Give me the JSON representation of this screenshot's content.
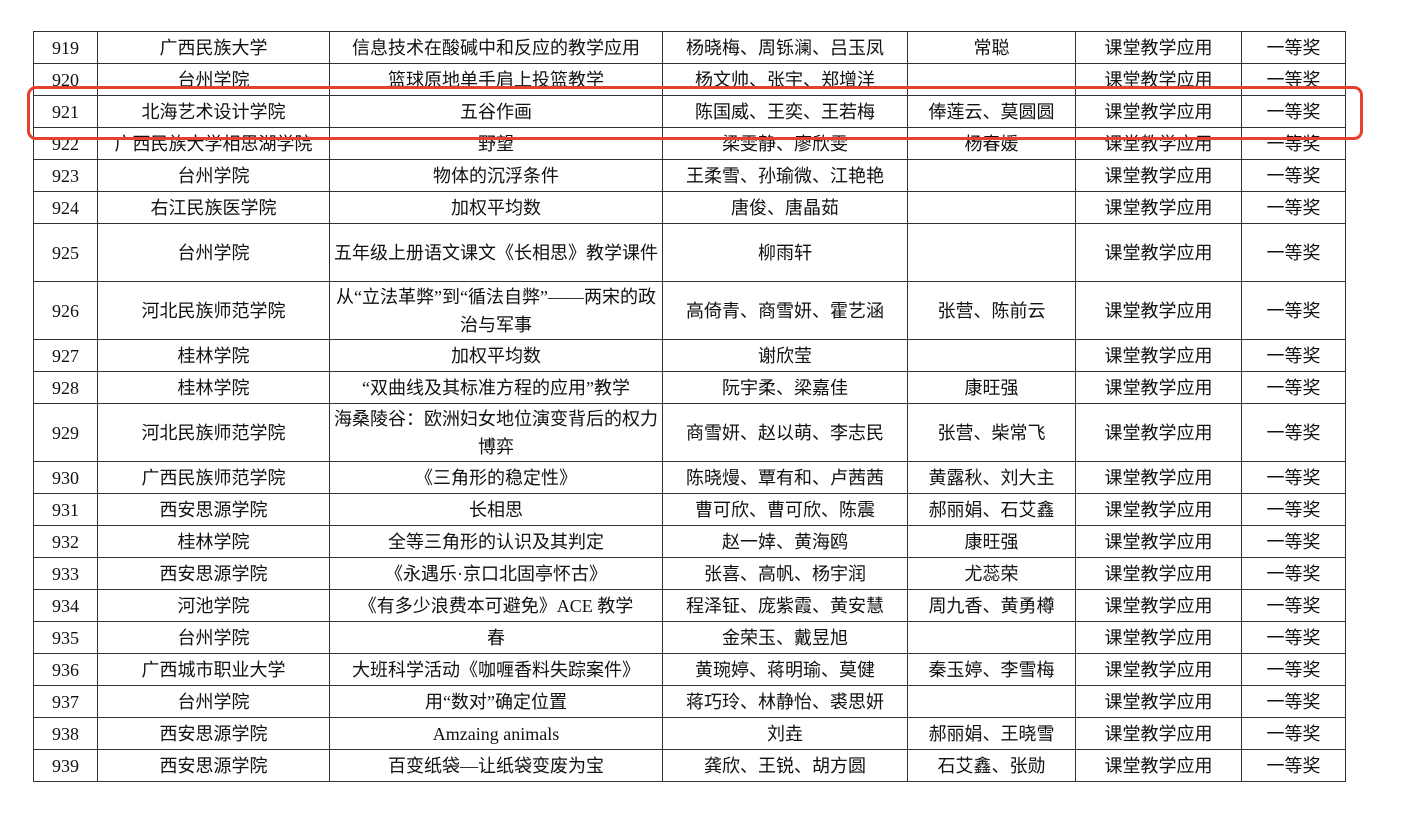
{
  "table": {
    "rows": [
      [
        "919",
        "广西民族大学",
        "信息技术在酸碱中和反应的教学应用",
        "杨晓梅、周铄澜、吕玉凤",
        "常聪",
        "课堂教学应用",
        "一等奖"
      ],
      [
        "920",
        "台州学院",
        "篮球原地单手肩上投篮教学",
        "杨文帅、张宇、郑增洋",
        "",
        "课堂教学应用",
        "一等奖"
      ],
      [
        "921",
        "北海艺术设计学院",
        "五谷作画",
        "陈国威、王奕、王若梅",
        "俸莲云、莫圆圆",
        "课堂教学应用",
        "一等奖"
      ],
      [
        "922",
        "广西民族大学相思湖学院",
        "野望",
        "梁雯静、廖欣雯",
        "杨春媛",
        "课堂教学应用",
        "一等奖"
      ],
      [
        "923",
        "台州学院",
        "物体的沉浮条件",
        "王柔雪、孙瑜微、江艳艳",
        "",
        "课堂教学应用",
        "一等奖"
      ],
      [
        "924",
        "右江民族医学院",
        "加权平均数",
        "唐俊、唐晶茹",
        "",
        "课堂教学应用",
        "一等奖"
      ],
      [
        "925",
        "台州学院",
        "五年级上册语文课文《长相思》教学课件",
        "柳雨轩",
        "",
        "课堂教学应用",
        "一等奖"
      ],
      [
        "926",
        "河北民族师范学院",
        "从“立法革弊”到“循法自弊”——两宋的政治与军事",
        "高倚青、商雪妍、霍艺涵",
        "张营、陈前云",
        "课堂教学应用",
        "一等奖"
      ],
      [
        "927",
        "桂林学院",
        "加权平均数",
        "谢欣莹",
        "",
        "课堂教学应用",
        "一等奖"
      ],
      [
        "928",
        "桂林学院",
        "“双曲线及其标准方程的应用”教学",
        "阮宇柔、梁嘉佳",
        "康旺强",
        "课堂教学应用",
        "一等奖"
      ],
      [
        "929",
        "河北民族师范学院",
        "海桑陵谷：欧洲妇女地位演变背后的权力博弈",
        "商雪妍、赵以萌、李志民",
        "张营、柴常飞",
        "课堂教学应用",
        "一等奖"
      ],
      [
        "930",
        "广西民族师范学院",
        "《三角形的稳定性》",
        "陈晓熳、覃有和、卢茜茜",
        "黄露秋、刘大主",
        "课堂教学应用",
        "一等奖"
      ],
      [
        "931",
        "西安思源学院",
        "长相思",
        "曹可欣、曹可欣、陈震",
        "郝丽娟、石艾鑫",
        "课堂教学应用",
        "一等奖"
      ],
      [
        "932",
        "桂林学院",
        "全等三角形的认识及其判定",
        "赵一婞、黄海鸥",
        "康旺强",
        "课堂教学应用",
        "一等奖"
      ],
      [
        "933",
        "西安思源学院",
        "《永遇乐·京口北固亭怀古》",
        "张喜、高帆、杨宇润",
        "尤蕊荣",
        "课堂教学应用",
        "一等奖"
      ],
      [
        "934",
        "河池学院",
        "《有多少浪费本可避免》ACE 教学",
        "程泽钲、庞紫霞、黄安慧",
        "周九香、黄勇樽",
        "课堂教学应用",
        "一等奖"
      ],
      [
        "935",
        "台州学院",
        "春",
        "金荣玉、戴昱旭",
        "",
        "课堂教学应用",
        "一等奖"
      ],
      [
        "936",
        "广西城市职业大学",
        "大班科学活动《咖喱香料失踪案件》",
        "黄琬婷、蒋明瑜、莫健",
        "秦玉婷、李雪梅",
        "课堂教学应用",
        "一等奖"
      ],
      [
        "937",
        "台州学院",
        "用“数对”确定位置",
        "蒋巧玲、林静怡、裘思妍",
        "",
        "课堂教学应用",
        "一等奖"
      ],
      [
        "938",
        "西安思源学院",
        "Amzaing animals",
        "刘垚",
        "郝丽娟、王晓雪",
        "课堂教学应用",
        "一等奖"
      ],
      [
        "939",
        "西安思源学院",
        "百变纸袋—让纸袋变废为宝",
        "龚欣、王锐、胡方圆",
        "石艾鑫、张勋",
        "课堂教学应用",
        "一等奖"
      ]
    ],
    "highlighted_row": "921",
    "highlight_color": "#e5412d"
  }
}
